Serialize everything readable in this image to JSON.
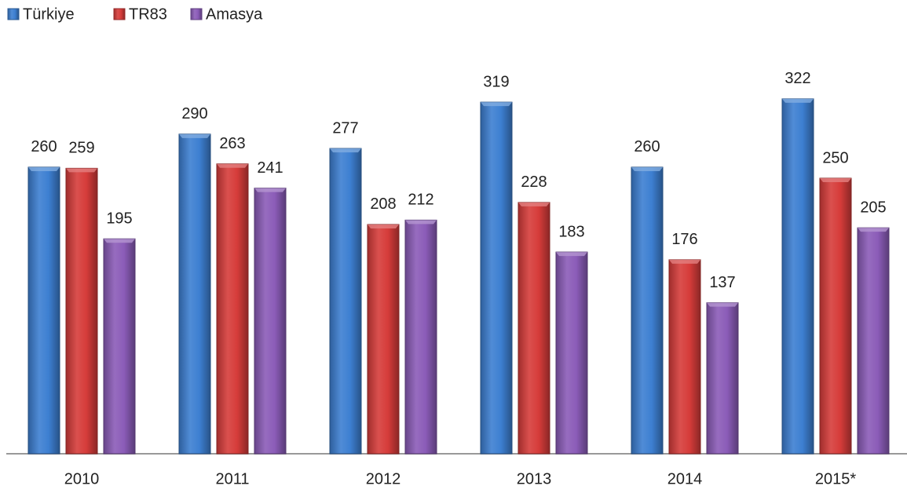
{
  "chart_data": {
    "type": "bar",
    "categories": [
      "2010",
      "2011",
      "2012",
      "2013",
      "2014",
      "2015*"
    ],
    "series": [
      {
        "name": "Türkiye",
        "color": "#3d7fd1",
        "values": [
          260,
          290,
          277,
          319,
          260,
          322
        ]
      },
      {
        "name": "TR83",
        "color": "#d63c3a",
        "values": [
          259,
          263,
          208,
          228,
          176,
          250
        ]
      },
      {
        "name": "Amasya",
        "color": "#8b5cb8",
        "values": [
          195,
          241,
          212,
          183,
          137,
          205
        ]
      }
    ],
    "legend": "top-left"
  }
}
